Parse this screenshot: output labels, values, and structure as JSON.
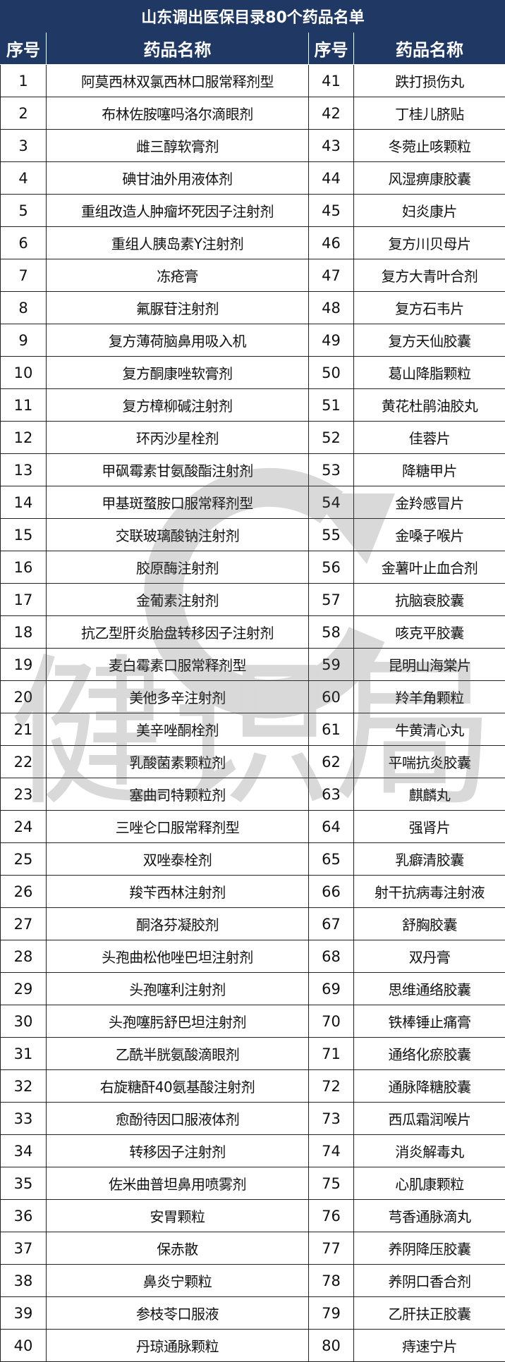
{
  "title": "山东调出医保目录80个药品名单",
  "headers": {
    "no": "序号",
    "name": "药品名称"
  },
  "watermark": "健识局",
  "colors": {
    "header_bg": "#203864",
    "header_text": "#ffffff"
  },
  "rows": [
    {
      "left_no": "1",
      "left_name": "阿莫西林双氯西林口服常释剂型",
      "right_no": "41",
      "right_name": "跌打损伤丸"
    },
    {
      "left_no": "2",
      "left_name": "布林佐胺噻吗洛尔滴眼剂",
      "right_no": "42",
      "right_name": "丁桂儿脐贴"
    },
    {
      "left_no": "3",
      "left_name": "雌三醇软膏剂",
      "right_no": "43",
      "right_name": "冬菀止咳颗粒"
    },
    {
      "left_no": "4",
      "left_name": "碘甘油外用液体剂",
      "right_no": "44",
      "right_name": "风湿痹康胶囊"
    },
    {
      "left_no": "5",
      "left_name": "重组改造人肿瘤坏死因子注射剂",
      "right_no": "45",
      "right_name": "妇炎康片"
    },
    {
      "left_no": "6",
      "left_name": "重组人胰岛素Y注射剂",
      "right_no": "46",
      "right_name": "复方川贝母片"
    },
    {
      "left_no": "7",
      "left_name": "冻疮膏",
      "right_no": "47",
      "right_name": "复方大青叶合剂"
    },
    {
      "left_no": "8",
      "left_name": "氟脲苷注射剂",
      "right_no": "48",
      "right_name": "复方石韦片"
    },
    {
      "left_no": "9",
      "left_name": "复方薄荷脑鼻用吸入机",
      "right_no": "49",
      "right_name": "复方天仙胶囊"
    },
    {
      "left_no": "10",
      "left_name": "复方酮康唑软膏剂",
      "right_no": "50",
      "right_name": "葛山降脂颗粒"
    },
    {
      "left_no": "11",
      "left_name": "复方樟柳碱注射剂",
      "right_no": "51",
      "right_name": "黄花杜鹃油胶丸"
    },
    {
      "left_no": "12",
      "left_name": "环丙沙星栓剂",
      "right_no": "52",
      "right_name": "佳蓉片"
    },
    {
      "left_no": "13",
      "left_name": "甲砜霉素甘氨酸酯注射剂",
      "right_no": "53",
      "right_name": "降糖甲片"
    },
    {
      "left_no": "14",
      "left_name": "甲基斑蝥胺口服常释剂型",
      "right_no": "54",
      "right_name": "金羚感冒片"
    },
    {
      "left_no": "15",
      "left_name": "交联玻璃酸钠注射剂",
      "right_no": "55",
      "right_name": "金嗓子喉片"
    },
    {
      "left_no": "16",
      "left_name": "胶原酶注射剂",
      "right_no": "56",
      "right_name": "金薯叶止血合剂"
    },
    {
      "left_no": "17",
      "left_name": "金葡素注射剂",
      "right_no": "57",
      "right_name": "抗脑衰胶囊"
    },
    {
      "left_no": "18",
      "left_name": "抗乙型肝炎胎盘转移因子注射剂",
      "right_no": "58",
      "right_name": "咳克平胶囊"
    },
    {
      "left_no": "19",
      "left_name": "麦白霉素口服常释剂型",
      "right_no": "59",
      "right_name": "昆明山海棠片"
    },
    {
      "left_no": "20",
      "left_name": "美他多辛注射剂",
      "right_no": "60",
      "right_name": "羚羊角颗粒"
    },
    {
      "left_no": "21",
      "left_name": "美辛唑酮栓剂",
      "right_no": "61",
      "right_name": "牛黄清心丸"
    },
    {
      "left_no": "22",
      "left_name": "乳酸菌素颗粒剂",
      "right_no": "62",
      "right_name": "平喘抗炎胶囊"
    },
    {
      "left_no": "23",
      "left_name": "塞曲司特颗粒剂",
      "right_no": "63",
      "right_name": "麒麟丸"
    },
    {
      "left_no": "24",
      "left_name": "三唑仑口服常释剂型",
      "right_no": "64",
      "right_name": "强肾片"
    },
    {
      "left_no": "25",
      "left_name": "双唑泰栓剂",
      "right_no": "65",
      "right_name": "乳癖清胶囊"
    },
    {
      "left_no": "26",
      "left_name": "羧苄西林注射剂",
      "right_no": "66",
      "right_name": "射干抗病毒注射液"
    },
    {
      "left_no": "27",
      "left_name": "酮洛芬凝胶剂",
      "right_no": "67",
      "right_name": "舒胸胶囊"
    },
    {
      "left_no": "28",
      "left_name": "头孢曲松他唑巴坦注射剂",
      "right_no": "68",
      "right_name": "双丹膏"
    },
    {
      "left_no": "29",
      "left_name": "头孢噻利注射剂",
      "right_no": "69",
      "right_name": "思维通络胶囊"
    },
    {
      "left_no": "30",
      "left_name": "头孢噻肟舒巴坦注射剂",
      "right_no": "70",
      "right_name": "铁棒锤止痛膏"
    },
    {
      "left_no": "31",
      "left_name": "乙酰半胱氨酸滴眼剂",
      "right_no": "71",
      "right_name": "通络化瘀胶囊"
    },
    {
      "left_no": "32",
      "left_name": "右旋糖酐40氨基酸注射剂",
      "right_no": "72",
      "right_name": "通脉降糖胶囊"
    },
    {
      "left_no": "33",
      "left_name": "愈酚待因口服液体剂",
      "right_no": "73",
      "right_name": "西瓜霜润喉片"
    },
    {
      "left_no": "34",
      "left_name": "转移因子注射剂",
      "right_no": "74",
      "right_name": "消炎解毒丸"
    },
    {
      "left_no": "35",
      "left_name": "佐米曲普坦鼻用喷雾剂",
      "right_no": "75",
      "right_name": "心肌康颗粒"
    },
    {
      "left_no": "36",
      "left_name": "安胃颗粒",
      "right_no": "76",
      "right_name": "芎香通脉滴丸"
    },
    {
      "left_no": "37",
      "left_name": "保赤散",
      "right_no": "77",
      "right_name": "养阴降压胶囊"
    },
    {
      "left_no": "38",
      "left_name": "鼻炎宁颗粒",
      "right_no": "78",
      "right_name": "养阴口香合剂"
    },
    {
      "left_no": "39",
      "left_name": "参枝苓口服液",
      "right_no": "79",
      "right_name": "乙肝扶正胶囊"
    },
    {
      "left_no": "40",
      "left_name": "丹琼通脉颗粒",
      "right_no": "80",
      "right_name": "痔速宁片"
    }
  ]
}
